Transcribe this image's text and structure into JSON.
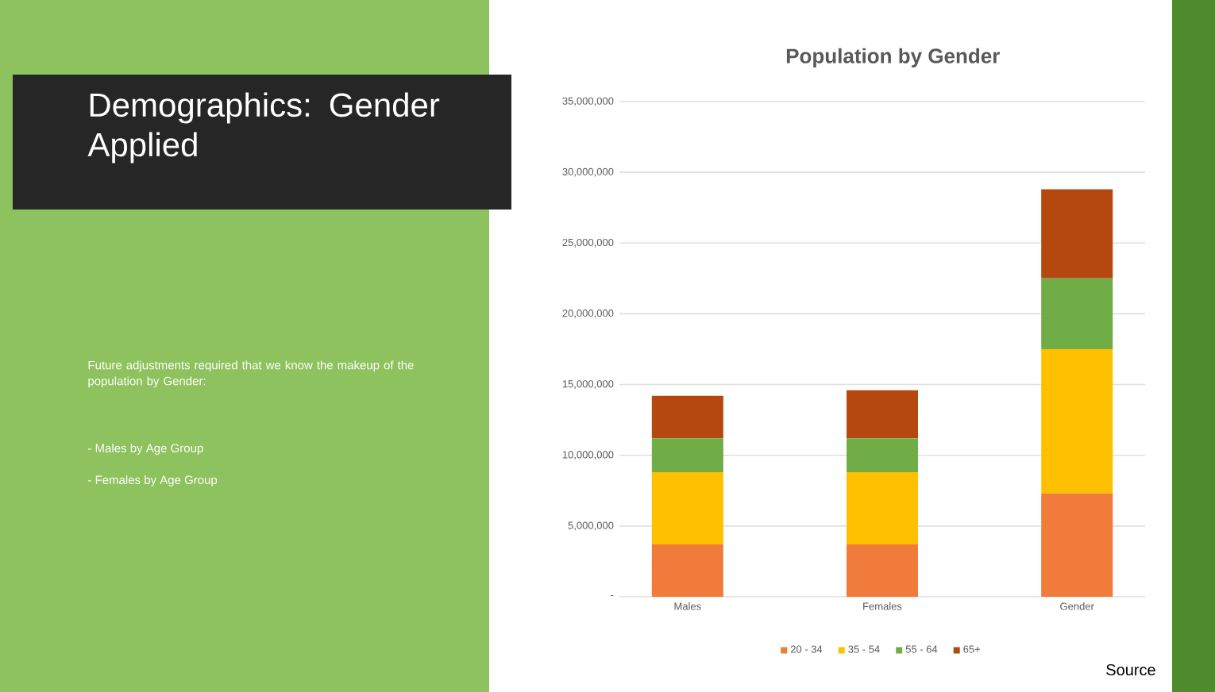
{
  "chart_data": {
    "type": "bar",
    "stacked": true,
    "title": "Population by Gender",
    "categories": [
      "Males",
      "Females",
      "Gender"
    ],
    "series": [
      {
        "name": "20 - 34",
        "color": "#f07b3a",
        "values": [
          3700000,
          3700000,
          7300000
        ]
      },
      {
        "name": "35 - 54",
        "color": "#ffc000",
        "values": [
          5100000,
          5100000,
          10200000
        ]
      },
      {
        "name": "55 - 64",
        "color": "#70ad47",
        "values": [
          2400000,
          2400000,
          5000000
        ]
      },
      {
        "name": "65+",
        "color": "#b5480f",
        "values": [
          3000000,
          3400000,
          6300000
        ]
      }
    ],
    "ylim": [
      0,
      35000000
    ],
    "yticks": [
      {
        "value": 0,
        "label": "-"
      },
      {
        "value": 5000000,
        "label": "5,000,000"
      },
      {
        "value": 10000000,
        "label": "10,000,000"
      },
      {
        "value": 15000000,
        "label": "15,000,000"
      },
      {
        "value": 20000000,
        "label": "20,000,000"
      },
      {
        "value": 25000000,
        "label": "25,000,000"
      },
      {
        "value": 30000000,
        "label": "30,000,000"
      },
      {
        "value": 35000000,
        "label": "35,000,000"
      }
    ],
    "grid": "y",
    "legend": "bottom",
    "annotations": [
      "Demographics: Gender Applied",
      "Future adjustments required that we know the makeup of the population by Gender:",
      "- Males by Age Group",
      "- Females by Age Group",
      "Source"
    ]
  }
}
